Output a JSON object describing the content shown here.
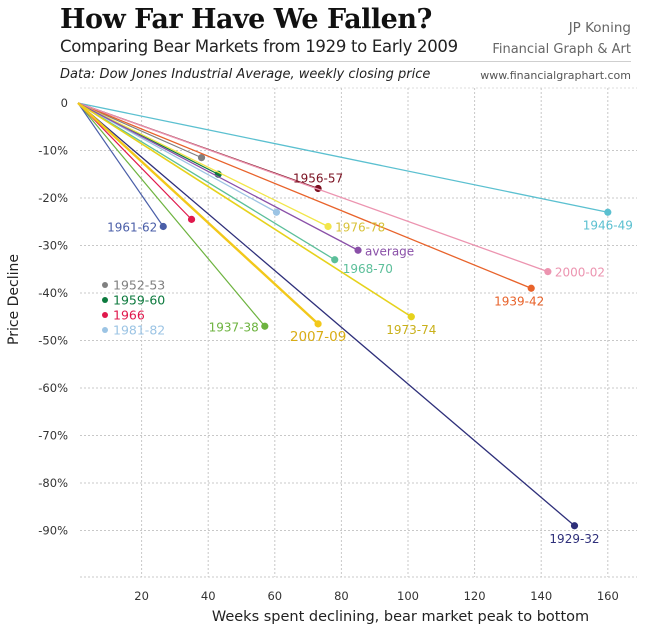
{
  "header": {
    "title": "How Far Have We Fallen?",
    "subtitle": "Comparing Bear Markets from 1929 to Early 2009",
    "author": "JP Koning",
    "org": "Financial Graph & Art",
    "data_note": "Data: Dow Jones Industrial Average, weekly closing price",
    "url": "www.financialgraphart.com"
  },
  "chart_data": {
    "type": "line",
    "title": "How Far Have We Fallen?",
    "subtitle": "Comparing Bear Markets from 1929 to Early 2009",
    "xlabel": "Weeks spent declining, bear market peak to bottom",
    "ylabel": "Price Decline",
    "xlim": [
      0,
      168
    ],
    "ylim": [
      -100,
      0
    ],
    "x_ticks": [
      20,
      40,
      60,
      80,
      100,
      120,
      140,
      160
    ],
    "x_tick_labels": [
      "20",
      "40",
      "60",
      "80",
      "100",
      "120",
      "140",
      "160"
    ],
    "y_ticks": [
      0,
      -10,
      -20,
      -30,
      -40,
      -50,
      -60,
      -70,
      -80,
      -90
    ],
    "y_tick_labels": [
      "0",
      "-10%",
      "-20%",
      "-30%",
      "-40%",
      "-50%",
      "-60%",
      "-70%",
      "-80%",
      "-90%"
    ],
    "grid": true,
    "legend": {
      "placement": "left",
      "entries": [
        "1952-53",
        "1959-60",
        "1966",
        "1981-82"
      ]
    },
    "series": [
      {
        "name": "1929-32",
        "weeks": 150,
        "decline": -89,
        "color": "#2e2f7a",
        "labeled": true,
        "label_pos": "below",
        "width": 1.3
      },
      {
        "name": "1937-38",
        "weeks": 57,
        "decline": -47,
        "color": "#6db33f",
        "labeled": true,
        "label_pos": "left",
        "width": 1.2
      },
      {
        "name": "1939-42",
        "weeks": 137,
        "decline": -39,
        "color": "#e8632b",
        "labeled": true,
        "label_pos": "below-left",
        "width": 1.3
      },
      {
        "name": "1946-49",
        "weeks": 160,
        "decline": -23,
        "color": "#5bc0d0",
        "labeled": true,
        "label_pos": "below",
        "width": 1.3
      },
      {
        "name": "1952-53",
        "weeks": 38,
        "decline": -11.5,
        "color": "#808080",
        "labeled": false,
        "width": 1.2
      },
      {
        "name": "1956-57",
        "weeks": 73,
        "decline": -18,
        "color": "#7a1020",
        "labeled": true,
        "label_pos": "above",
        "width": 1.3
      },
      {
        "name": "1959-60",
        "weeks": 43,
        "decline": -15,
        "color": "#0d7a3e",
        "labeled": false,
        "width": 1.2
      },
      {
        "name": "1961-62",
        "weeks": 26.5,
        "decline": -26,
        "color": "#4a5ea8",
        "labeled": true,
        "label_pos": "left",
        "width": 1.2
      },
      {
        "name": "1966",
        "weeks": 35,
        "decline": -24.5,
        "color": "#e0184c",
        "labeled": false,
        "width": 1.2
      },
      {
        "name": "1968-70",
        "weeks": 78,
        "decline": -33,
        "color": "#5cbf9a",
        "labeled": true,
        "label_pos": "right-below",
        "width": 1.3
      },
      {
        "name": "1973-74",
        "weeks": 101,
        "decline": -45,
        "color": "#e6d21c",
        "labeled": true,
        "label_pos": "below",
        "width": 1.6
      },
      {
        "name": "1976-78",
        "weeks": 76,
        "decline": -26,
        "color": "#f2e64a",
        "labeled": true,
        "label_pos": "right",
        "width": 1.3
      },
      {
        "name": "1981-82",
        "weeks": 60.5,
        "decline": -23,
        "color": "#9cc4e4",
        "labeled": false,
        "width": 1.3
      },
      {
        "name": "2000-02",
        "weeks": 142,
        "decline": -35.5,
        "color": "#ec94b0",
        "labeled": true,
        "label_pos": "right",
        "width": 1.3
      },
      {
        "name": "2007-09",
        "weeks": 73,
        "decline": -46.5,
        "color": "#f2c81a",
        "labeled": true,
        "label_pos": "below",
        "width": 2.4
      },
      {
        "name": "average",
        "weeks": 85,
        "decline": -31,
        "color": "#8a50a8",
        "labeled": true,
        "label_pos": "right",
        "width": 1.3
      }
    ]
  }
}
